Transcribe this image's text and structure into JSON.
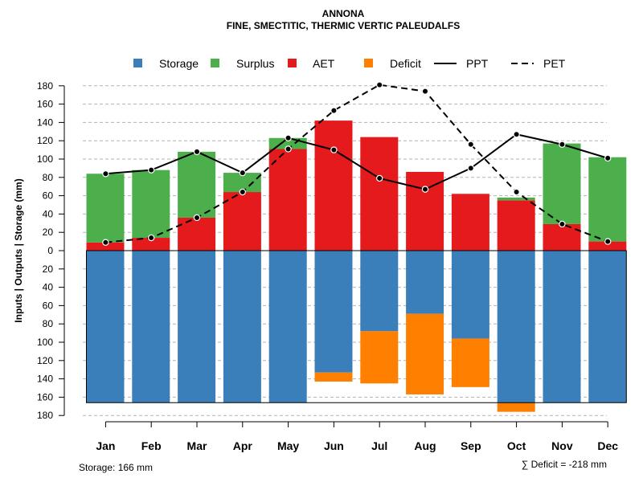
{
  "chart_data": {
    "type": "bar",
    "title": "ANNONA",
    "subtitle": "FINE, SMECTITIC, THERMIC VERTIC PALEUDALFS",
    "ylabel": "Inputs | Outputs | Storage     (mm)",
    "ylim": [
      -180,
      180
    ],
    "yticks": [
      180,
      160,
      140,
      120,
      100,
      80,
      60,
      40,
      20,
      0,
      20,
      40,
      60,
      80,
      100,
      120,
      140,
      160,
      180
    ],
    "categories": [
      "Jan",
      "Feb",
      "Mar",
      "Apr",
      "May",
      "Jun",
      "Jul",
      "Aug",
      "Sep",
      "Oct",
      "Nov",
      "Dec"
    ],
    "series": [
      {
        "name": "Storage",
        "values": [
          166,
          166,
          166,
          166,
          166,
          133,
          88,
          69,
          96,
          166,
          166,
          166
        ]
      },
      {
        "name": "Surplus",
        "values": [
          75,
          74,
          72,
          21,
          12,
          0,
          0,
          0,
          0,
          3,
          88,
          92
        ]
      },
      {
        "name": "AET",
        "values": [
          9,
          14,
          36,
          64,
          111,
          142,
          124,
          86,
          62,
          55,
          29,
          10
        ]
      },
      {
        "name": "Deficit",
        "values": [
          0,
          0,
          0,
          0,
          0,
          10,
          57,
          88,
          53,
          10,
          0,
          0
        ]
      },
      {
        "name": "PPT",
        "values": [
          84,
          88,
          108,
          85,
          123,
          110,
          79,
          67,
          90,
          127,
          116,
          101
        ]
      },
      {
        "name": "PET",
        "values": [
          9,
          14,
          36,
          64,
          111,
          153,
          181,
          174,
          116,
          64,
          29,
          10
        ]
      }
    ],
    "legend": [
      "Storage",
      "Surplus",
      "AET",
      "Deficit",
      "PPT",
      "PET"
    ],
    "legend_position": "top",
    "grid": true,
    "colors": {
      "Storage": "#3A7FBA",
      "Surplus": "#4CAF4C",
      "AET": "#E41A1C",
      "Deficit": "#FF7F00",
      "line": "#000000",
      "grid": "#B3B3B3"
    },
    "footnote_left": "Storage: 166 mm",
    "footnote_right": "∑ Deficit = -218 mm"
  }
}
